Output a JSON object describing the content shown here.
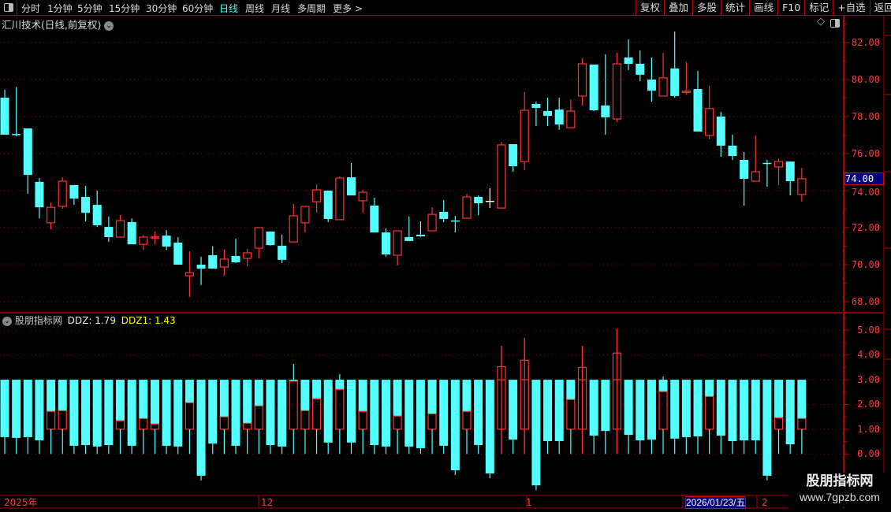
{
  "toolbar": {
    "periods": [
      "分时",
      "1分钟",
      "5分钟",
      "15分钟",
      "30分钟",
      "60分钟",
      "日线",
      "周线",
      "月线",
      "多周期",
      "更多 >"
    ],
    "active_period": "日线",
    "buttons": [
      "复权",
      "叠加",
      "多股",
      "统计",
      "画线",
      "F10",
      "标记",
      "+自选",
      "返回"
    ]
  },
  "chart": {
    "title": "汇川技术(日线,前复权)",
    "price_axis": [
      "82.00",
      "80.00",
      "78.00",
      "76.00",
      "74.00",
      "72.00",
      "70.00",
      "68.00"
    ],
    "current_price": "74.00"
  },
  "indicator": {
    "name": "股朋指标网",
    "ddz_label": "DDZ: 1.79",
    "ddz1_label": "DDZ1: 1.43",
    "axis": [
      "5.00",
      "4.00",
      "3.00",
      "2.00",
      "1.00",
      "0.00"
    ]
  },
  "date_axis": {
    "labels": [
      "2025年",
      "12",
      "1",
      "2"
    ],
    "cursor_date": "2026/01/23/五"
  },
  "watermark": {
    "name": "股朋指标网",
    "url": "www.7gpzb.com"
  },
  "colors": {
    "up": "#ff3333",
    "down": "#54ffff",
    "grid": "#8b0000",
    "border": "#b00000",
    "axis_text": "#ff3b3b",
    "highlight": "#00007a",
    "active_tab": "#44ffff",
    "ddz1": "#ffff00"
  },
  "chart_data": [
    {
      "type": "candlestick",
      "title": "汇川技术(日线,前复权)",
      "ylim": [
        68,
        82.8
      ],
      "yticks": [
        68,
        70,
        72,
        74,
        76,
        78,
        80,
        82
      ],
      "grid": true,
      "ohlc": [
        [
          79.02,
          79.45,
          77.02,
          77.02
        ],
        [
          77.06,
          79.6,
          76.94,
          77.05
        ],
        [
          77.36,
          77.36,
          73.83,
          74.85
        ],
        [
          74.47,
          74.68,
          72.5,
          73.1
        ],
        [
          72.26,
          73.36,
          71.91,
          73.1
        ],
        [
          73.15,
          74.72,
          73.02,
          74.51
        ],
        [
          74.3,
          74.3,
          73.23,
          73.57
        ],
        [
          73.66,
          74.26,
          72.34,
          72.8
        ],
        [
          73.23,
          74.0,
          72.04,
          72.13
        ],
        [
          72.04,
          72.6,
          71.23,
          71.49
        ],
        [
          71.49,
          72.68,
          71.49,
          72.38
        ],
        [
          72.3,
          72.5,
          71.1,
          71.1
        ],
        [
          71.1,
          71.6,
          70.8,
          71.49
        ],
        [
          71.49,
          71.79,
          71.1,
          71.5
        ],
        [
          71.57,
          71.87,
          70.8,
          70.98
        ],
        [
          71.19,
          71.49,
          70.0,
          70.0
        ],
        [
          69.4,
          70.72,
          68.26,
          69.57
        ],
        [
          70.0,
          70.43,
          68.9,
          69.79
        ],
        [
          70.51,
          71.0,
          69.79,
          69.79
        ],
        [
          69.87,
          70.81,
          69.4,
          70.3
        ],
        [
          70.47,
          71.4,
          70.09,
          70.13
        ],
        [
          70.34,
          70.85,
          69.91,
          70.64
        ],
        [
          70.89,
          72.0,
          70.34,
          72.0
        ],
        [
          71.79,
          71.79,
          71.02,
          71.06
        ],
        [
          71.02,
          71.62,
          70.09,
          70.26
        ],
        [
          71.23,
          73.28,
          71.23,
          72.64
        ],
        [
          72.26,
          73.15,
          71.74,
          73.15
        ],
        [
          73.4,
          74.34,
          72.81,
          74.04
        ],
        [
          74.0,
          74.0,
          72.3,
          72.47
        ],
        [
          72.43,
          74.77,
          72.43,
          74.68
        ],
        [
          74.72,
          75.49,
          73.74,
          73.74
        ],
        [
          73.45,
          74.04,
          72.81,
          73.91
        ],
        [
          73.19,
          73.62,
          71.74,
          71.74
        ],
        [
          71.74,
          71.96,
          70.43,
          70.55
        ],
        [
          70.51,
          71.83,
          69.96,
          71.83
        ],
        [
          71.49,
          72.6,
          71.28,
          71.28
        ],
        [
          71.62,
          72.34,
          71.5,
          71.53
        ],
        [
          71.83,
          73.1,
          71.83,
          72.72
        ],
        [
          72.85,
          73.49,
          72.3,
          72.47
        ],
        [
          72.39,
          72.64,
          71.74,
          72.38
        ],
        [
          72.51,
          73.83,
          72.51,
          73.66
        ],
        [
          73.66,
          73.74,
          72.68,
          73.32
        ],
        [
          73.45,
          74.13,
          73.06,
          73.45
        ],
        [
          73.06,
          76.64,
          73.06,
          76.47
        ],
        [
          76.51,
          76.51,
          75.02,
          75.32
        ],
        [
          75.57,
          79.32,
          75.11,
          78.34
        ],
        [
          78.68,
          78.81,
          77.49,
          78.47
        ],
        [
          78.3,
          79.02,
          77.49,
          78.04
        ],
        [
          78.38,
          79.02,
          77.28,
          77.57
        ],
        [
          77.4,
          78.94,
          77.4,
          78.3
        ],
        [
          79.11,
          81.15,
          78.6,
          80.85
        ],
        [
          80.81,
          80.81,
          78.3,
          78.34
        ],
        [
          78.6,
          81.36,
          77.02,
          77.96
        ],
        [
          77.87,
          81.45,
          77.7,
          80.85
        ],
        [
          81.19,
          82.17,
          80.51,
          80.85
        ],
        [
          80.85,
          81.57,
          79.91,
          80.26
        ],
        [
          80.0,
          81.19,
          78.81,
          79.4
        ],
        [
          79.11,
          81.45,
          79.11,
          80.09
        ],
        [
          80.6,
          82.6,
          79.02,
          79.11
        ],
        [
          79.35,
          80.94,
          79.19,
          79.37
        ],
        [
          79.49,
          80.47,
          77.19,
          77.19
        ],
        [
          76.98,
          79.66,
          76.77,
          78.43
        ],
        [
          78.0,
          78.26,
          75.83,
          76.43
        ],
        [
          76.43,
          77.02,
          75.66,
          75.87
        ],
        [
          75.66,
          76.09,
          73.19,
          74.64
        ],
        [
          74.51,
          76.98,
          74.51,
          75.02
        ],
        [
          75.5,
          75.66,
          74.21,
          75.49
        ],
        [
          75.28,
          75.74,
          74.3,
          75.57
        ],
        [
          75.57,
          75.57,
          73.74,
          74.51
        ],
        [
          73.79,
          75.23,
          73.4,
          74.64
        ]
      ]
    },
    {
      "type": "bar",
      "title": "股朋指标网",
      "ylim": [
        -1.4,
        5.3
      ],
      "yticks": [
        0,
        1,
        2,
        3,
        4,
        5
      ],
      "grid": true,
      "bar_top": 3.0,
      "red_box_base": 1.0,
      "bars": [
        {
          "v": 0.68
        },
        {
          "v": 0.65
        },
        {
          "v": 0.68
        },
        {
          "v": 0.55
        },
        {
          "r": 1.72
        },
        {
          "r": 1.75
        },
        {
          "v": 0.33
        },
        {
          "v": 0.36
        },
        {
          "v": 0.3
        },
        {
          "v": 0.36
        },
        {
          "r": 1.34
        },
        {
          "v": 0.33
        },
        {
          "r": 1.43
        },
        {
          "r": 1.21
        },
        {
          "v": 0.33
        },
        {
          "v": 0.3
        },
        {
          "r": 2.07
        },
        {
          "v": -0.88
        },
        {
          "v": 0.42
        },
        {
          "r": 1.5
        },
        {
          "v": 0.33
        },
        {
          "r": 1.24
        },
        {
          "r": 1.94
        },
        {
          "v": 0.36
        },
        {
          "v": 0.3
        },
        {
          "r": 2.94,
          "s": 3.64
        },
        {
          "r": 1.75
        },
        {
          "r": 2.23
        },
        {
          "v": 0.46
        },
        {
          "r": 2.61,
          "s": 3.23
        },
        {
          "v": 0.46
        },
        {
          "r": 1.72
        },
        {
          "v": 0.36
        },
        {
          "v": 0.3
        },
        {
          "r": 1.53
        },
        {
          "v": 0.3
        },
        {
          "v": 0.23
        },
        {
          "r": 1.62
        },
        {
          "v": 0.33
        },
        {
          "v": -0.66
        },
        {
          "r": 1.72
        },
        {
          "v": 0.36
        },
        {
          "v": -0.79
        },
        {
          "r": 3.53,
          "s": 4.37
        },
        {
          "v": 0.58
        },
        {
          "r": 3.79,
          "s": 4.69
        },
        {
          "v": -1.27
        },
        {
          "v": 0.52
        },
        {
          "v": 0.52
        },
        {
          "r": 2.2
        },
        {
          "r": 3.5,
          "s": 4.37
        },
        {
          "v": 0.74
        },
        {
          "v": 0.93
        },
        {
          "r": 4.08,
          "s": 5.07
        },
        {
          "v": 0.77
        },
        {
          "v": 0.55
        },
        {
          "v": 0.58
        },
        {
          "r": 2.52,
          "s": 3.13
        },
        {
          "v": 0.62
        },
        {
          "v": 0.68
        },
        {
          "v": 0.71
        },
        {
          "r": 2.32
        },
        {
          "v": 0.74
        },
        {
          "v": 0.52
        },
        {
          "v": 0.55
        },
        {
          "v": 0.55
        },
        {
          "v": -0.88
        },
        {
          "r": 1.46
        },
        {
          "v": 0.39
        },
        {
          "r": 1.43
        }
      ]
    }
  ]
}
